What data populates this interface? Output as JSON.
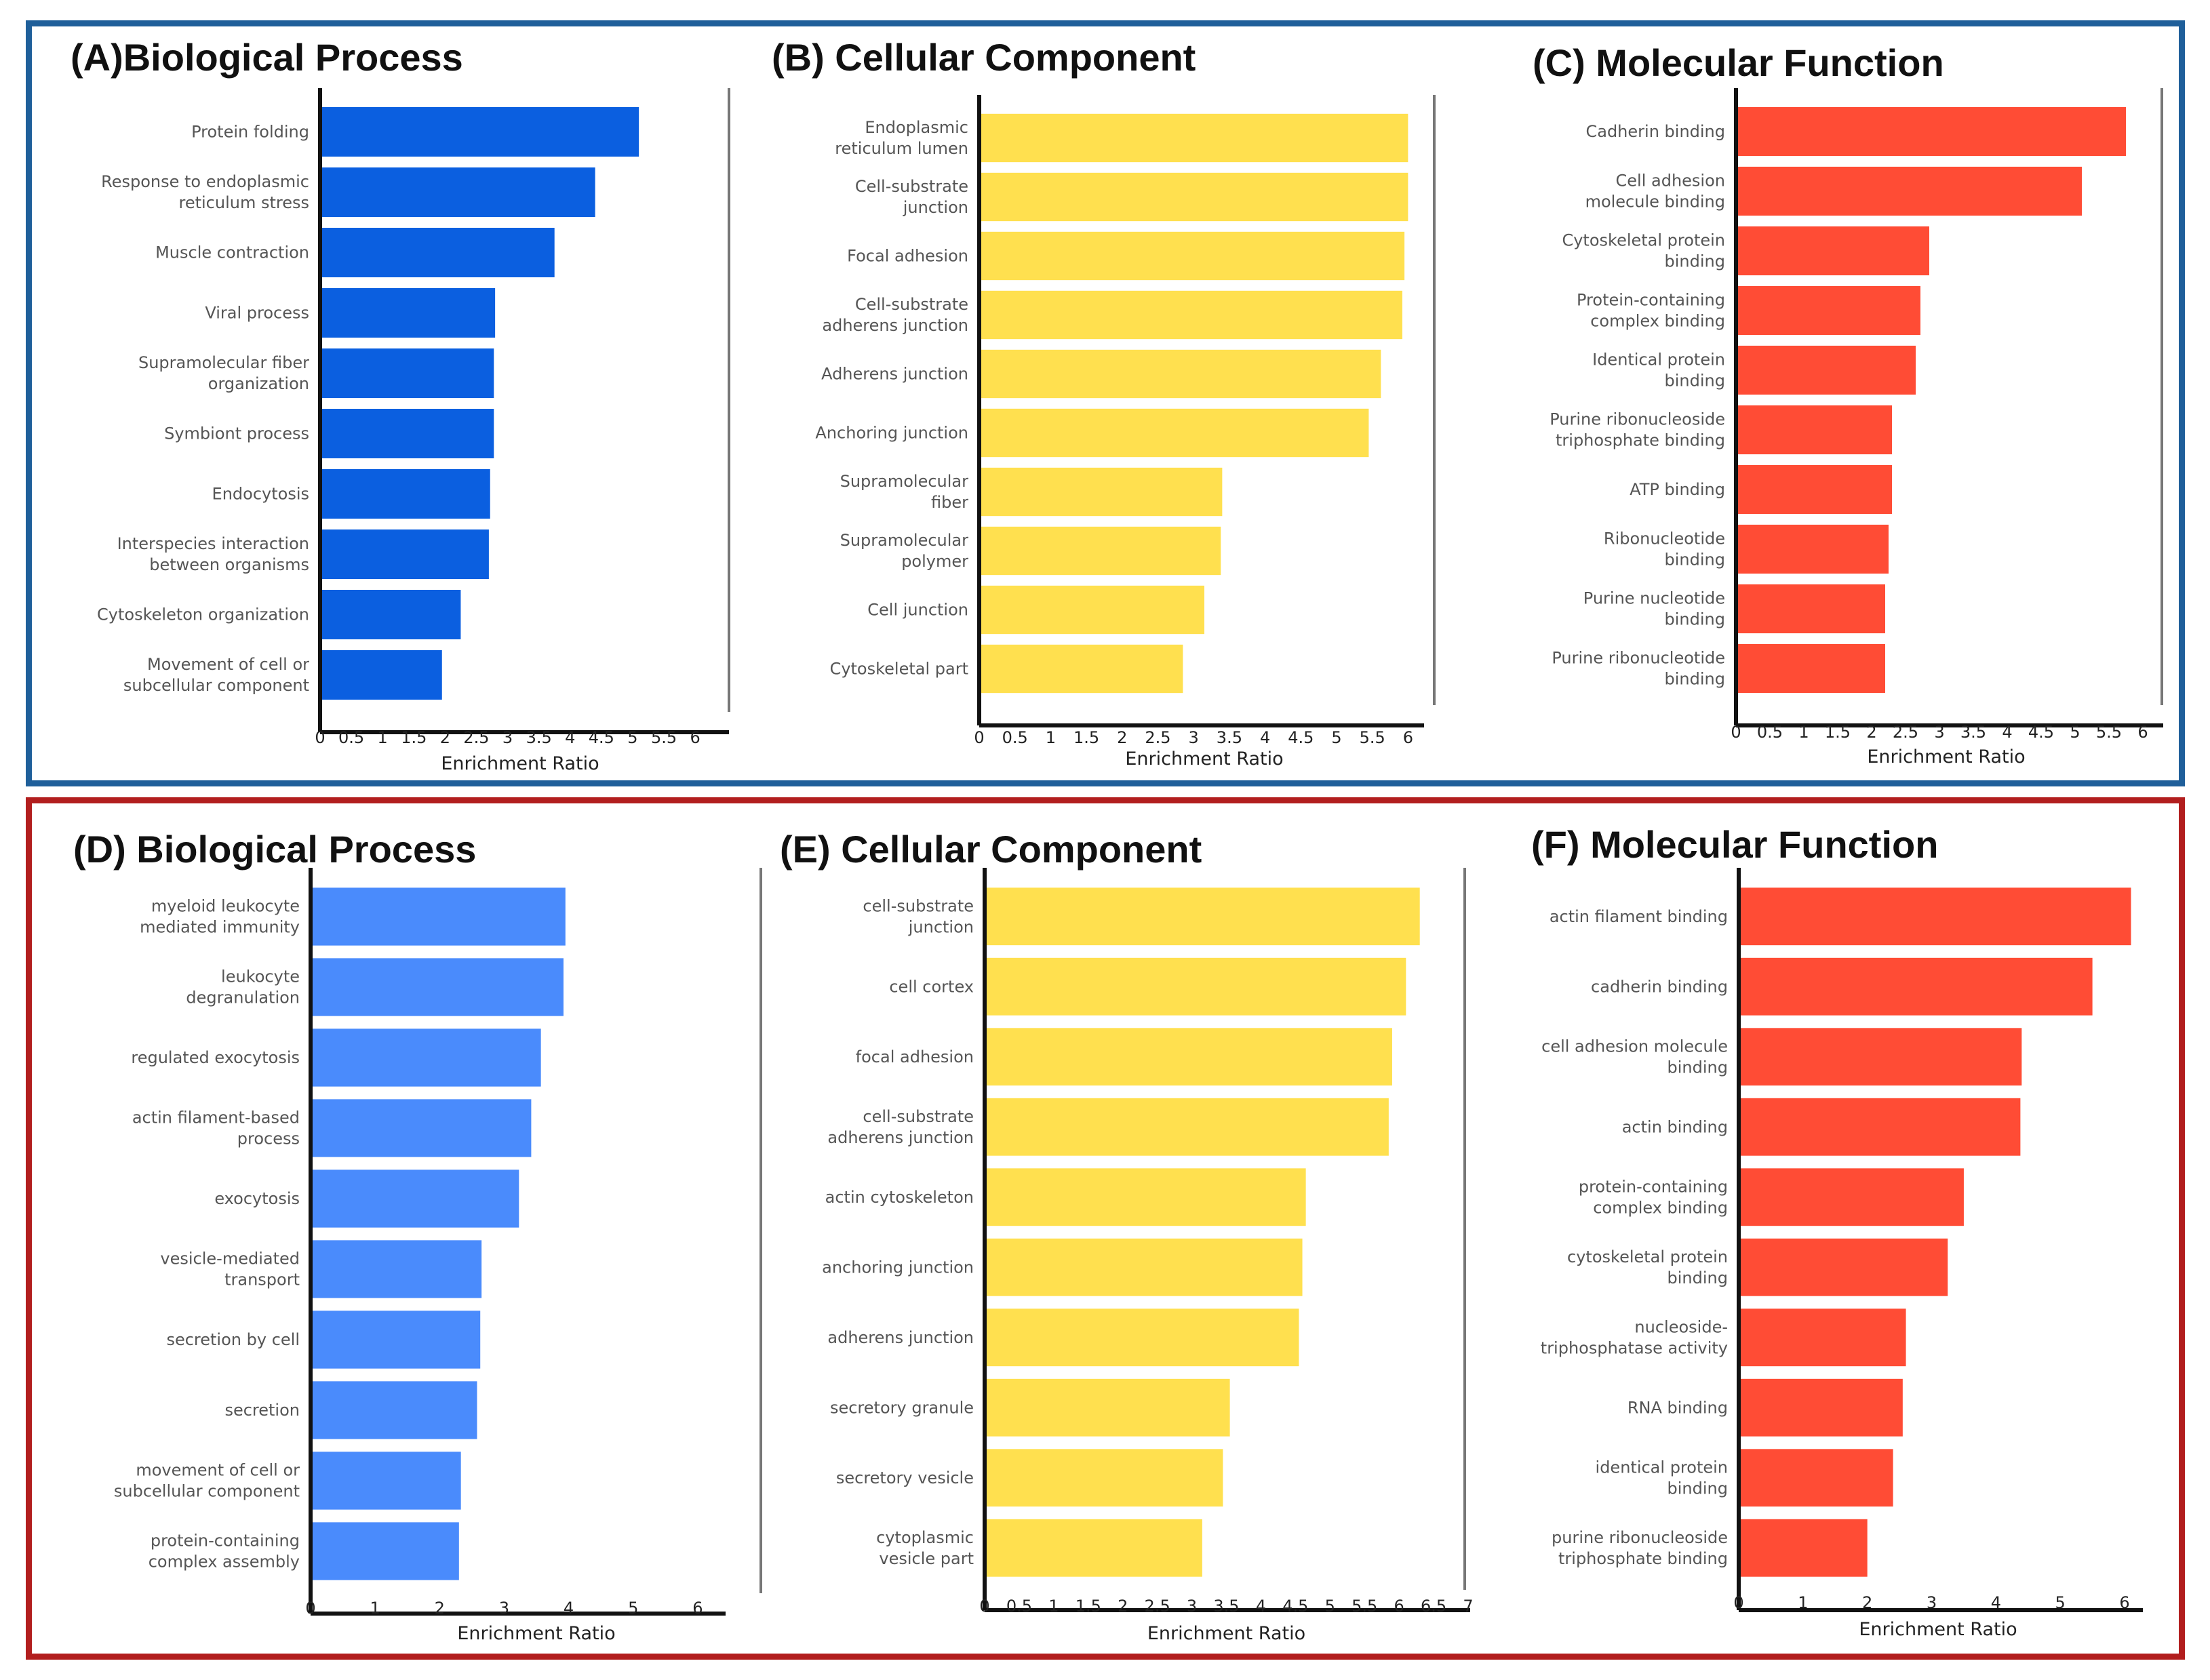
{
  "frames": {
    "top_color": "#1f5f9a",
    "bottom_color": "#b21e1e"
  },
  "chart_data": [
    {
      "id": "A",
      "type": "bar",
      "orientation": "horizontal",
      "title": "(A)Biological Process",
      "color": "#0b5fe0",
      "xlabel": "Enrichment Ratio",
      "ylabel": "",
      "xlim": [
        0,
        6.4
      ],
      "xticks": [
        "0",
        "0.5",
        "1",
        "1.5",
        "2",
        "2.5",
        "3",
        "3.5",
        "4",
        "4.5",
        "5",
        "5.5",
        "6"
      ],
      "categories": [
        [
          "Protein folding"
        ],
        [
          "Response to endoplasmic",
          "reticulum stress"
        ],
        [
          "Muscle contraction"
        ],
        [
          "Viral process"
        ],
        [
          "Supramolecular fiber",
          "organization"
        ],
        [
          "Symbiont process"
        ],
        [
          "Endocytosis"
        ],
        [
          "Interspecies interaction",
          "between organisms"
        ],
        [
          "Cytoskeleton organization"
        ],
        [
          "Movement of cell or",
          "subcellular component"
        ]
      ],
      "values": [
        5.1,
        4.4,
        3.75,
        2.8,
        2.78,
        2.78,
        2.72,
        2.7,
        2.25,
        1.95
      ]
    },
    {
      "id": "B",
      "type": "bar",
      "orientation": "horizontal",
      "title": "(B) Cellular Component",
      "color": "#ffe04f",
      "xlabel": "Enrichment Ratio",
      "ylabel": "",
      "xlim": [
        0,
        6.3
      ],
      "xticks": [
        "0",
        "0.5",
        "1",
        "1.5",
        "2",
        "2.5",
        "3",
        "3.5",
        "4",
        "4.5",
        "5",
        "5.5",
        "6"
      ],
      "categories": [
        [
          "Endoplasmic",
          "reticulum lumen"
        ],
        [
          "Cell-substrate",
          "junction"
        ],
        [
          "Focal adhesion"
        ],
        [
          "Cell-substrate",
          "adherens junction"
        ],
        [
          "Adherens junction"
        ],
        [
          "Anchoring junction"
        ],
        [
          "Supramolecular",
          "fiber"
        ],
        [
          "Supramolecular",
          "polymer"
        ],
        [
          "Cell junction"
        ],
        [
          "Cytoskeletal part"
        ]
      ],
      "values": [
        6.0,
        6.0,
        5.95,
        5.92,
        5.62,
        5.45,
        3.4,
        3.38,
        3.15,
        2.85
      ]
    },
    {
      "id": "C",
      "type": "bar",
      "orientation": "horizontal",
      "title": "(C) Molecular Function",
      "color": "#ff4c35",
      "xlabel": "Enrichment Ratio",
      "ylabel": "",
      "xlim": [
        0,
        6.2
      ],
      "xticks": [
        "0",
        "0.5",
        "1",
        "1.5",
        "2",
        "2.5",
        "3",
        "3.5",
        "4",
        "4.5",
        "5",
        "5.5",
        "6"
      ],
      "categories": [
        [
          "Cadherin binding"
        ],
        [
          "Cell adhesion",
          "molecule binding"
        ],
        [
          "Cytoskeletal protein",
          "binding"
        ],
        [
          "Protein-containing",
          "complex binding"
        ],
        [
          "Identical protein",
          "binding"
        ],
        [
          "Purine ribonucleoside",
          "triphosphate binding"
        ],
        [
          "ATP binding"
        ],
        [
          "Ribonucleotide",
          "binding"
        ],
        [
          "Purine nucleotide",
          "binding"
        ],
        [
          "Purine ribonucleotide",
          "binding"
        ]
      ],
      "values": [
        5.75,
        5.1,
        2.85,
        2.72,
        2.65,
        2.3,
        2.3,
        2.25,
        2.2,
        2.2
      ]
    },
    {
      "id": "D",
      "type": "bar",
      "orientation": "horizontal",
      "title": "(D) Biological Process",
      "color": "#4a8bfc",
      "xlabel": "Enrichment Ratio",
      "ylabel": "",
      "xlim": [
        0,
        7.0
      ],
      "xticks": [
        "0",
        "1",
        "2",
        "3",
        "4",
        "5",
        "6"
      ],
      "categories": [
        [
          "myeloid leukocyte",
          "mediated immunity"
        ],
        [
          "leukocyte",
          "degranulation"
        ],
        [
          "regulated exocytosis"
        ],
        [
          "actin filament-based",
          "process"
        ],
        [
          "exocytosis"
        ],
        [
          "vesicle-mediated",
          "transport"
        ],
        [
          "secretion by cell"
        ],
        [
          "secretion"
        ],
        [
          "movement of cell or",
          "subcellular component"
        ],
        [
          "protein-containing",
          "complex assembly"
        ]
      ],
      "values": [
        3.95,
        3.92,
        3.57,
        3.42,
        3.23,
        2.65,
        2.63,
        2.58,
        2.33,
        2.3
      ]
    },
    {
      "id": "E",
      "type": "bar",
      "orientation": "horizontal",
      "title": "(E) Cellular Component",
      "color": "#ffe04f",
      "xlabel": "Enrichment Ratio",
      "ylabel": "",
      "xlim": [
        0,
        7.0
      ],
      "xticks": [
        "0",
        "0.5",
        "1",
        "1.5",
        "2",
        "2.5",
        "3",
        "3.5",
        "4",
        "4.5",
        "5",
        "5.5",
        "6",
        "6.5",
        "7"
      ],
      "categories": [
        [
          "cell-substrate",
          "junction"
        ],
        [
          "cell cortex"
        ],
        [
          "focal adhesion"
        ],
        [
          "cell-substrate",
          "adherens junction"
        ],
        [
          "actin cytoskeleton"
        ],
        [
          "anchoring junction"
        ],
        [
          "adherens junction"
        ],
        [
          "secretory granule"
        ],
        [
          "secretory vesicle"
        ],
        [
          "cytoplasmic",
          "vesicle part"
        ]
      ],
      "values": [
        6.3,
        6.1,
        5.9,
        5.85,
        4.65,
        4.6,
        4.55,
        3.55,
        3.45,
        3.15
      ]
    },
    {
      "id": "F",
      "type": "bar",
      "orientation": "horizontal",
      "title": "(F) Molecular Function",
      "color": "#ff4c35",
      "xlabel": "Enrichment Ratio",
      "ylabel": "",
      "xlim": [
        0,
        6.2
      ],
      "xticks": [
        "0",
        "1",
        "2",
        "3",
        "4",
        "5",
        "6"
      ],
      "categories": [
        [
          "actin filament binding"
        ],
        [
          "cadherin binding"
        ],
        [
          "cell adhesion molecule",
          "binding"
        ],
        [
          "actin binding"
        ],
        [
          "protein-containing",
          "complex binding"
        ],
        [
          "cytoskeletal protein",
          "binding"
        ],
        [
          "nucleoside-",
          "triphosphatase activity"
        ],
        [
          "RNA binding"
        ],
        [
          "identical protein",
          "binding"
        ],
        [
          "purine ribonucleoside",
          "triphosphate binding"
        ]
      ],
      "values": [
        6.1,
        5.5,
        4.4,
        4.38,
        3.5,
        3.25,
        2.6,
        2.55,
        2.4,
        2.0
      ]
    }
  ]
}
